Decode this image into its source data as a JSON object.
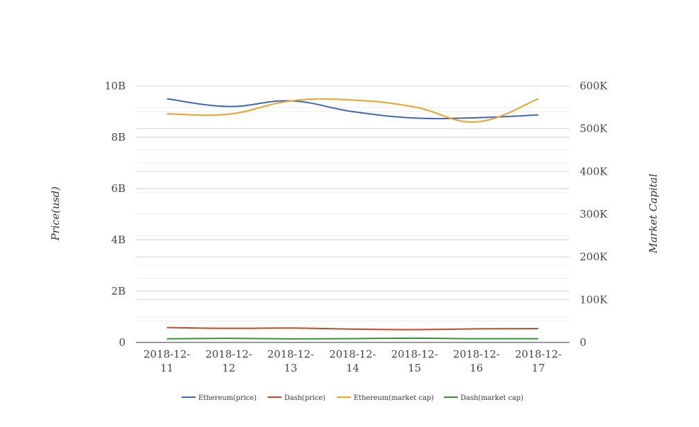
{
  "chart_data": {
    "type": "line",
    "categories": [
      "2018-12-11",
      "2018-12-12",
      "2018-12-13",
      "2018-12-14",
      "2018-12-15",
      "2018-12-16",
      "2018-12-17"
    ],
    "category_labels": [
      [
        "2018-12-",
        "11"
      ],
      [
        "2018-12-",
        "12"
      ],
      [
        "2018-12-",
        "13"
      ],
      [
        "2018-12-",
        "14"
      ],
      [
        "2018-12-",
        "15"
      ],
      [
        "2018-12-",
        "16"
      ],
      [
        "2018-12-",
        "17"
      ]
    ],
    "y_left": {
      "label": "Price(usd)",
      "ticks": [
        0,
        2000000000,
        4000000000,
        6000000000,
        8000000000,
        10000000000
      ],
      "tick_labels": [
        "0",
        "2B",
        "4B",
        "6B",
        "8B",
        "10B"
      ],
      "range": [
        0,
        10000000000
      ]
    },
    "y_right": {
      "label": "Market Capital",
      "ticks": [
        0,
        100000,
        200000,
        300000,
        400000,
        500000,
        600000
      ],
      "tick_labels": [
        "0",
        "100K",
        "200K",
        "300K",
        "400K",
        "500K",
        "600K"
      ],
      "range": [
        0,
        600000
      ]
    },
    "series": [
      {
        "name": "Ethereum(price)",
        "axis": "left",
        "color": "#3b67b9",
        "values": [
          9500000000,
          9200000000,
          9420000000,
          9000000000,
          8750000000,
          8760000000,
          8870000000
        ]
      },
      {
        "name": "Dash(price)",
        "axis": "left",
        "color": "#c8461f",
        "values": [
          580000000,
          550000000,
          560000000,
          520000000,
          500000000,
          530000000,
          540000000
        ]
      },
      {
        "name": "Ethereum(market cap)",
        "axis": "right",
        "color": "#f2a11f",
        "values": [
          535000,
          534000,
          565000,
          567000,
          551000,
          516000,
          570000
        ]
      },
      {
        "name": "Dash(market cap)",
        "axis": "right",
        "color": "#2a9a2a",
        "values": [
          8500,
          9500,
          8300,
          8900,
          10000,
          8700,
          8700
        ]
      }
    ],
    "grid": true,
    "legend_position": "bottom"
  }
}
